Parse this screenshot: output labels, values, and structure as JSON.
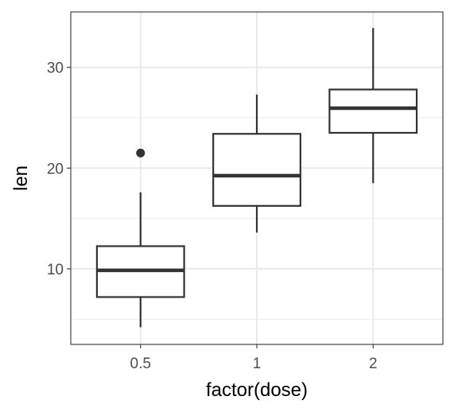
{
  "chart_data": {
    "type": "boxplot",
    "xlabel": "factor(dose)",
    "ylabel": "len",
    "categories": [
      "0.5",
      "1",
      "2"
    ],
    "ylim": [
      2.5,
      35.5
    ],
    "y_major_ticks": [
      10,
      20,
      30
    ],
    "y_minor_ticks": [
      5,
      15,
      25
    ],
    "grid": true,
    "theme": "bw",
    "box_color": "#333333",
    "grid_color": "#ebebeb",
    "boxes": [
      {
        "category": "0.5",
        "whisker_low": 4.2,
        "q1": 7.2,
        "median": 9.85,
        "q3": 12.25,
        "whisker_high": 17.6,
        "outliers": [
          21.5
        ]
      },
      {
        "category": "1",
        "whisker_low": 13.6,
        "q1": 16.25,
        "median": 19.25,
        "q3": 23.4,
        "whisker_high": 27.3,
        "outliers": []
      },
      {
        "category": "2",
        "whisker_low": 18.5,
        "q1": 23.5,
        "median": 25.95,
        "q3": 27.8,
        "whisker_high": 33.9,
        "outliers": []
      }
    ]
  }
}
